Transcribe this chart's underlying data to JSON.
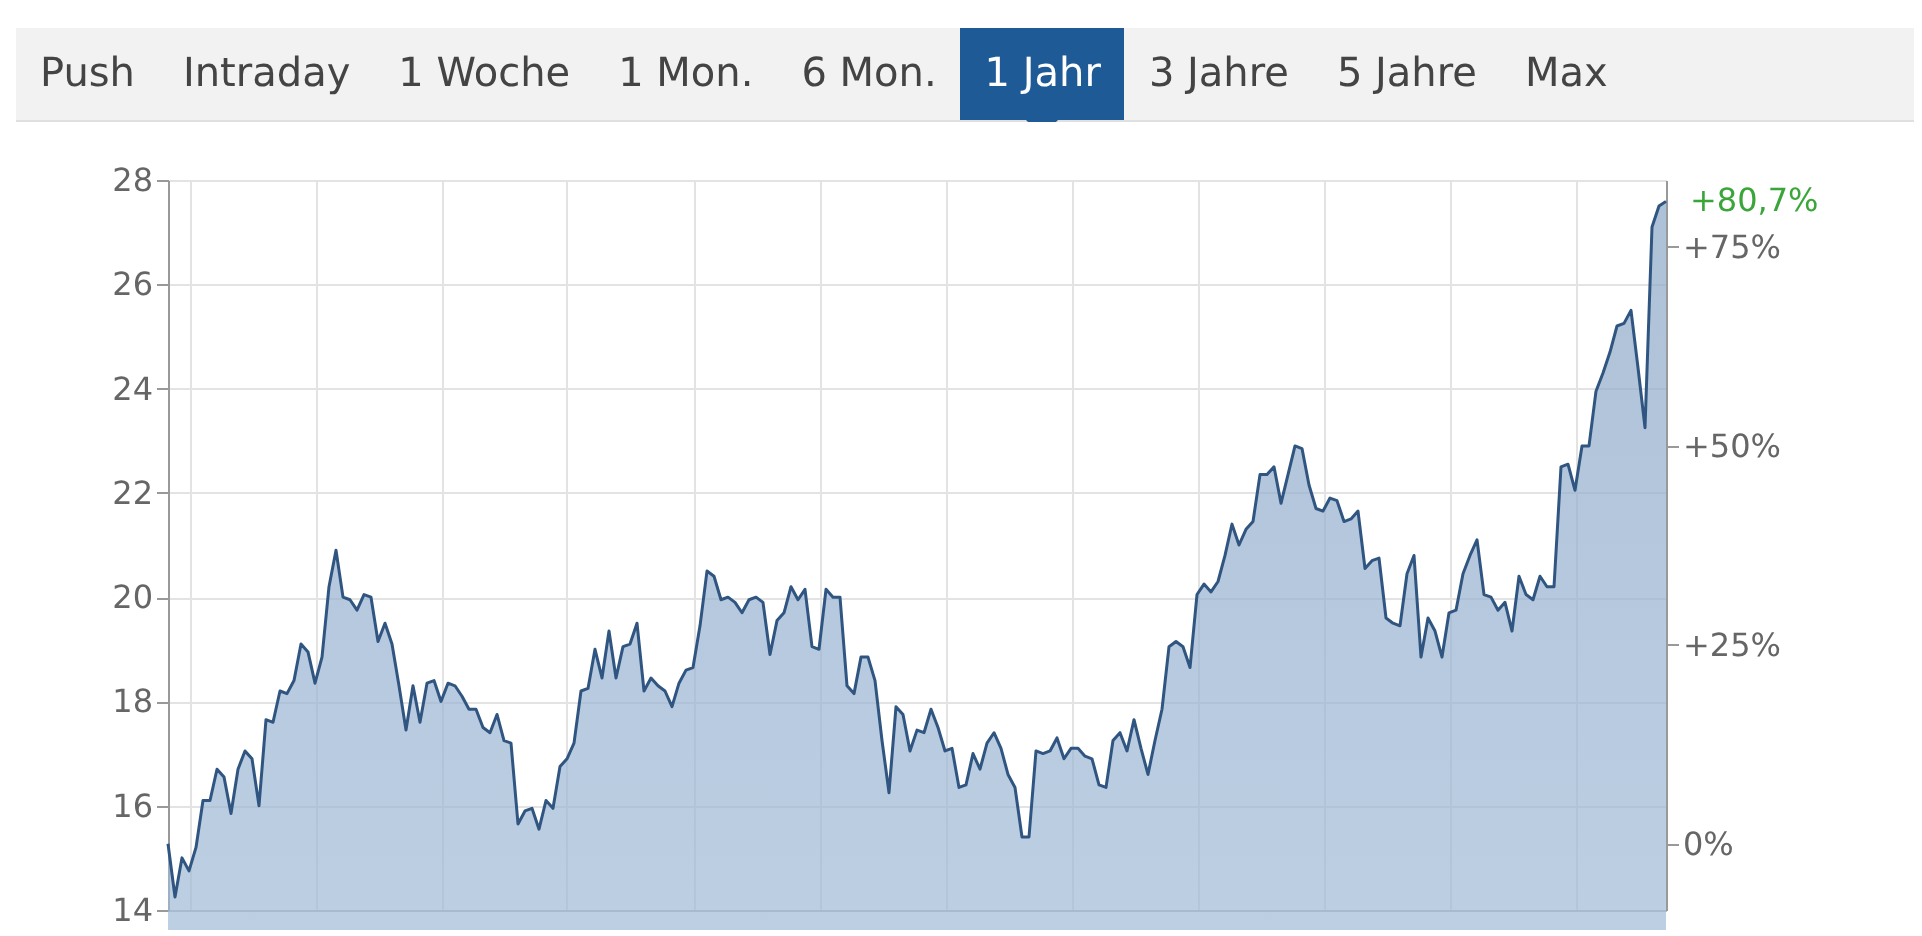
{
  "chart_data": {
    "type": "area",
    "annotations": [
      "Push",
      "Intraday",
      "1 Woche",
      "1 Mon.",
      "6 Mon.",
      "1 Jahr",
      "3 Jahre",
      "5 Jahre",
      "Max",
      "+80,7%"
    ],
    "categories": [
      null,
      null,
      null,
      null,
      null,
      null,
      null,
      null,
      null,
      null,
      null,
      null,
      null,
      null,
      null,
      null,
      null,
      null,
      null,
      null,
      null,
      null,
      null,
      null,
      null,
      null,
      null,
      null,
      null,
      null,
      null,
      null,
      null,
      null,
      null,
      null,
      null,
      null,
      null,
      null,
      null,
      null,
      null,
      null,
      null,
      null,
      null,
      null,
      null,
      null,
      null,
      null,
      null,
      null,
      null,
      null,
      null,
      null,
      null,
      null,
      null,
      null,
      null,
      null,
      null,
      null,
      null,
      null,
      null,
      null,
      null,
      null,
      null,
      null,
      null,
      null,
      null,
      null,
      null,
      null,
      null,
      null,
      null,
      null,
      null,
      null,
      null,
      null,
      null,
      null,
      null,
      null,
      null,
      null,
      null,
      null,
      null,
      null,
      null,
      null,
      null,
      null,
      null,
      null,
      null,
      null,
      null,
      null,
      null,
      null,
      null,
      null,
      null,
      null,
      null,
      null,
      null,
      null,
      null,
      null,
      null,
      null,
      null,
      null,
      null,
      null,
      null,
      null,
      null,
      null,
      null,
      null,
      null,
      null,
      null,
      null,
      null,
      null,
      null,
      null,
      null,
      null,
      null,
      null,
      null,
      null,
      null,
      null,
      null,
      null,
      null,
      null,
      null,
      null,
      null,
      null,
      null,
      null,
      null,
      null,
      null,
      null,
      null,
      null,
      null,
      null,
      null,
      null,
      null,
      null,
      null,
      null,
      null,
      null,
      null,
      null,
      null,
      null,
      null,
      null,
      null,
      null,
      null,
      null,
      null,
      null,
      null,
      null,
      null,
      null,
      null,
      null,
      null,
      null,
      null,
      null,
      null,
      null,
      null,
      null,
      null,
      null,
      null,
      null,
      null,
      null,
      null,
      null,
      null,
      null,
      null,
      null,
      null,
      null,
      null
    ],
    "series": [
      {
        "color": "#2f5580",
        "values": [
          15.27,
          14.25,
          15.0,
          14.75,
          15.2,
          16.1,
          16.1,
          16.7,
          16.55,
          15.85,
          16.7,
          17.05,
          16.9,
          16.0,
          17.65,
          17.6,
          18.2,
          18.15,
          18.4,
          19.1,
          18.95,
          18.35,
          18.85,
          20.2,
          20.9,
          20.0,
          19.95,
          19.75,
          20.05,
          20.0,
          19.15,
          19.5,
          19.1,
          18.3,
          17.45,
          18.3,
          17.6,
          18.35,
          18.4,
          18.0,
          18.35,
          18.3,
          18.1,
          17.85,
          17.85,
          17.5,
          17.4,
          17.75,
          17.25,
          17.2,
          15.65,
          15.9,
          15.95,
          15.55,
          16.1,
          15.95,
          16.75,
          16.9,
          17.2,
          18.2,
          18.25,
          19.0,
          18.45,
          19.35,
          18.45,
          19.05,
          19.1,
          19.5,
          18.2,
          18.45,
          18.3,
          18.2,
          17.9,
          18.35,
          18.6,
          18.65,
          19.45,
          20.5,
          20.4,
          19.95,
          20.0,
          19.9,
          19.7,
          19.95,
          20.0,
          19.9,
          18.9,
          19.55,
          19.7,
          20.2,
          19.95,
          20.15,
          19.05,
          19.0,
          20.15,
          20.0,
          20.0,
          18.3,
          18.15,
          18.85,
          18.85,
          18.4,
          17.25,
          16.25,
          17.9,
          17.75,
          17.05,
          17.45,
          17.4,
          17.85,
          17.5,
          17.05,
          17.1,
          16.35,
          16.4,
          17.0,
          16.7,
          17.2,
          17.4,
          17.1,
          16.6,
          16.35,
          15.4,
          15.4,
          17.05,
          17.0,
          17.05,
          17.3,
          16.9,
          17.1,
          17.1,
          16.95,
          16.9,
          16.4,
          16.35,
          17.25,
          17.4,
          17.05,
          17.65,
          17.1,
          16.6,
          17.25,
          17.85,
          19.05,
          19.15,
          19.05,
          18.65,
          20.05,
          20.25,
          20.1,
          20.3,
          20.8,
          21.4,
          21.0,
          21.3,
          21.45,
          22.35,
          22.35,
          22.5,
          21.8,
          22.35,
          22.9,
          22.85,
          22.15,
          21.7,
          21.65,
          21.9,
          21.85,
          21.45,
          21.5,
          21.65,
          20.55,
          20.7,
          20.75,
          19.6,
          19.5,
          19.45,
          20.45,
          20.8,
          18.85,
          19.6,
          19.35,
          18.85,
          19.7,
          19.75,
          20.45,
          20.8,
          21.1,
          20.05,
          20.0,
          19.75,
          19.9,
          19.35,
          20.4,
          20.05,
          19.95,
          20.4,
          20.2,
          20.2,
          22.5,
          22.55,
          22.05,
          22.9,
          22.9,
          23.95,
          24.3,
          24.7,
          25.2,
          25.25,
          25.5,
          24.4,
          23.25,
          27.1,
          27.5,
          27.59
        ]
      }
    ],
    "ylim": [
      14,
      28
    ],
    "yticks": [
      14,
      16,
      18,
      20,
      22,
      24,
      26,
      28
    ],
    "y2lim": [
      -8.3,
      83.4
    ],
    "y2ticks": [
      {
        "value": 0,
        "label": "0%"
      },
      {
        "value": 25,
        "label": "+25%"
      },
      {
        "value": 50,
        "label": "+50%"
      },
      {
        "value": 75,
        "label": "+75%"
      }
    ],
    "grid": true
  }
}
